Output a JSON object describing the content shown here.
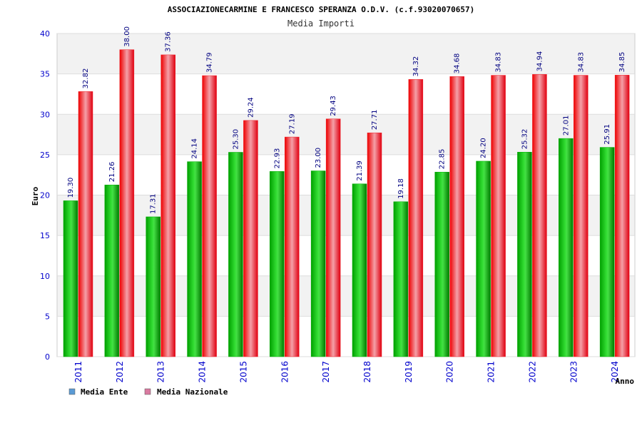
{
  "colors": {
    "ente": "#00aa00",
    "nazionale": "#ee1c24",
    "legend_ente": "#5b9bd5",
    "legend_nazionale": "#d97aa0",
    "value_label": "#000080",
    "tick_label": "#0000cc"
  },
  "chart_data": {
    "type": "bar",
    "title": "ASSOCIAZIONECARMINE E FRANCESCO SPERANZA O.D.V. (c.f.93020070657)",
    "subtitle": "Media Importi",
    "xlabel": "Anno",
    "ylabel": "Euro",
    "ylim": [
      0,
      40
    ],
    "yticks": [
      0,
      5,
      10,
      15,
      20,
      25,
      30,
      35,
      40
    ],
    "grid": true,
    "legend_position": "bottom-left",
    "categories": [
      "2011",
      "2012",
      "2013",
      "2014",
      "2015",
      "2016",
      "2017",
      "2018",
      "2019",
      "2020",
      "2021",
      "2022",
      "2023",
      "2024"
    ],
    "series": [
      {
        "name": "Media Ente",
        "values": [
          19.3,
          21.26,
          17.31,
          24.14,
          25.3,
          22.93,
          23.0,
          21.39,
          19.18,
          22.85,
          24.2,
          25.32,
          27.01,
          25.91
        ],
        "labels": [
          "19.30",
          "21.26",
          "17.31",
          "24.14",
          "25.30",
          "22.93",
          "23.00",
          "21.39",
          "19.18",
          "22.85",
          "24.20",
          "25.32",
          "27.01",
          "25.91"
        ]
      },
      {
        "name": "Media Nazionale",
        "values": [
          32.82,
          38.0,
          37.36,
          34.79,
          29.24,
          27.19,
          29.43,
          27.71,
          34.32,
          34.68,
          34.83,
          34.94,
          34.83,
          34.85
        ],
        "labels": [
          "32.82",
          "38.00",
          "37.36",
          "34.79",
          "29.24",
          "27.19",
          "29.43",
          "27.71",
          "34.32",
          "34.68",
          "34.83",
          "34.94",
          "34.83",
          "34.85"
        ]
      }
    ]
  }
}
